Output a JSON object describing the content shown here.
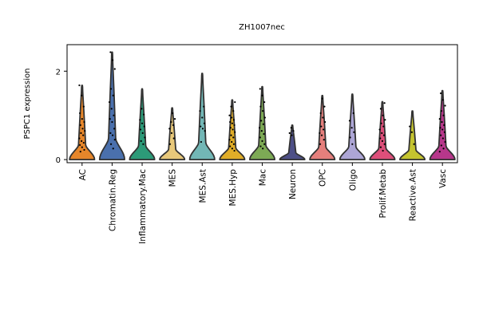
{
  "chart_data": {
    "type": "violin",
    "title": "ZH1007nec",
    "ylabel": "PSPC1 expression",
    "xlabel": "",
    "ylim": [
      -0.07,
      2.6
    ],
    "yticks": [
      0,
      2
    ],
    "grid": false,
    "legend": "none",
    "categories": [
      "AC",
      "Chromatin.Reg",
      "Inflammatory.Mac",
      "MES",
      "MES.Ast",
      "MES.Hyp",
      "Mac",
      "Neuron",
      "OPC",
      "Oligo",
      "Prolif.Metab",
      "Reactive.Ast",
      "Vasc"
    ],
    "colors": [
      "#e6862a",
      "#4a70ad",
      "#2c9a78",
      "#e8c87a",
      "#72b7b6",
      "#e0ad28",
      "#7daa55",
      "#4d4f87",
      "#e57f7c",
      "#ada6d6",
      "#dd4f7a",
      "#c5c42f",
      "#b7378b"
    ],
    "max_values": [
      1.68,
      2.43,
      1.6,
      1.17,
      1.95,
      1.35,
      1.65,
      0.78,
      1.45,
      1.48,
      1.31,
      1.1,
      1.56
    ],
    "points": [
      [
        1.68,
        1.45,
        1.2,
        1.05,
        0.92,
        0.85,
        0.78,
        0.7,
        0.65,
        0.6,
        0.55,
        0.48,
        0.42,
        0.38,
        0.33,
        0.28,
        0.22,
        0.18
      ],
      [
        2.43,
        2.25,
        2.05,
        1.6,
        1.45,
        1.3,
        1.15,
        1.0,
        0.92,
        0.85,
        0.7,
        0.6,
        0.55,
        0.45,
        0.35,
        0.25
      ],
      [
        1.15,
        1.02,
        0.9,
        0.82,
        0.75,
        0.68,
        0.6,
        0.5,
        0.42,
        0.35
      ],
      [
        1.05,
        0.92,
        0.85,
        0.78,
        0.7,
        0.6,
        0.48,
        0.35
      ],
      [
        1.2,
        1.1,
        0.95,
        0.82,
        0.75,
        0.7,
        0.65,
        0.4
      ],
      [
        1.3,
        1.2,
        1.1,
        1.0,
        0.95,
        0.9,
        0.85,
        0.82,
        0.78,
        0.72,
        0.68,
        0.62,
        0.55,
        0.5,
        0.45,
        0.4,
        0.35,
        0.3,
        0.25,
        0.2
      ],
      [
        1.6,
        1.45,
        1.3,
        1.2,
        1.1,
        0.95,
        0.88,
        0.8,
        0.72,
        0.65,
        0.58,
        0.5,
        0.42,
        0.35,
        0.3,
        0.25
      ],
      [
        0.72,
        0.65,
        0.6,
        0.55
      ],
      [
        1.38,
        1.2,
        1.05,
        0.95,
        0.85,
        0.75,
        0.68,
        0.6,
        0.55,
        0.45,
        0.35
      ],
      [
        1.05,
        0.88,
        0.72,
        0.62,
        0.5,
        0.35
      ],
      [
        1.28,
        1.15,
        1.0,
        0.9,
        0.82,
        0.75,
        0.68,
        0.6,
        0.55,
        0.48,
        0.42,
        0.35,
        0.28,
        0.2
      ],
      [
        0.75,
        0.62,
        0.35
      ],
      [
        1.5,
        1.35,
        1.22,
        1.1,
        1.0,
        0.92,
        0.85,
        0.78,
        0.72,
        0.68,
        0.62,
        0.55,
        0.48,
        0.4,
        0.32,
        0.25,
        0.18
      ]
    ]
  }
}
